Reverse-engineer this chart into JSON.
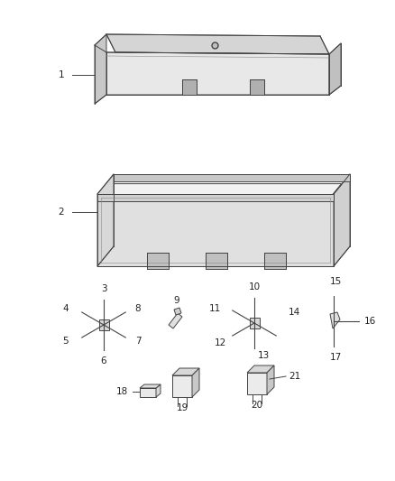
{
  "bg_color": "#ffffff",
  "line_color": "#444444",
  "label_color": "#222222",
  "font_size": 7.5,
  "lw": 0.7
}
